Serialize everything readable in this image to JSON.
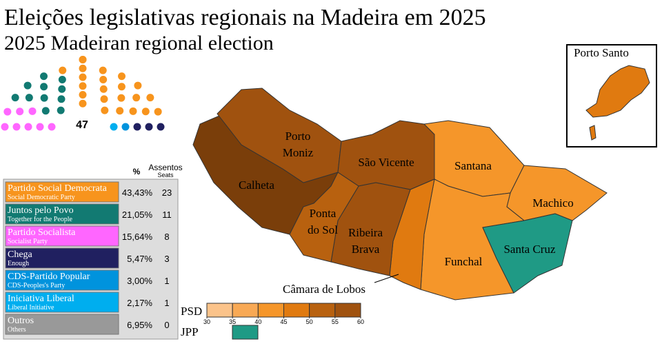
{
  "title": "Eleições legislativas regionais na Madeira em 2025",
  "subtitle": "2025 Madeiran regional election",
  "parliament": {
    "total": 47
  },
  "table": {
    "headers": {
      "percent": "%",
      "seats": "Assentos",
      "seats_en": "Seats"
    },
    "parties": [
      {
        "name": "Partido Social Democrata",
        "english": "Social Democratic Party",
        "percent": {
          "value": 43.43,
          "label": "43,43%"
        },
        "seats": 23,
        "color": "#f7941d"
      },
      {
        "name": "Juntos pelo Povo",
        "english": "Together for the People",
        "percent": {
          "value": 21.05,
          "label": "21,05%"
        },
        "seats": 11,
        "color": "#127a72"
      },
      {
        "name": "Partido Socialista",
        "english": "Socialist Party",
        "percent": {
          "value": 15.64,
          "label": "15,64%"
        },
        "seats": 8,
        "color": "#ff66ff"
      },
      {
        "name": "Chega",
        "english": "Enough",
        "percent": {
          "value": 5.47,
          "label": "5,47%"
        },
        "seats": 3,
        "color": "#202060"
      },
      {
        "name": "CDS-Partido Popular",
        "english": "CDS-Peoples's Party",
        "percent": {
          "value": 3.0,
          "label": "3,00%"
        },
        "seats": 1,
        "color": "#0093dd"
      },
      {
        "name": "Iniciativa Liberal",
        "english": "Liberal Initiative",
        "percent": {
          "value": 2.17,
          "label": "2,17%"
        },
        "seats": 1,
        "color": "#00aeef"
      },
      {
        "name": "Outros",
        "english": "Others",
        "percent": {
          "value": 6.95,
          "label": "6,95%"
        },
        "seats": 0,
        "color": "#999999"
      }
    ]
  },
  "map": {
    "regions": [
      {
        "label": [
          "Porto",
          "Moniz"
        ]
      },
      {
        "label": [
          "São Vicente"
        ]
      },
      {
        "label": [
          "Santana"
        ]
      },
      {
        "label": [
          "Calheta"
        ]
      },
      {
        "label": [
          "Ponta",
          "do Sol"
        ]
      },
      {
        "label": [
          "Ribeira",
          "Brava"
        ]
      },
      {
        "label": [
          "Machico"
        ]
      },
      {
        "label": [
          "Santa Cruz"
        ]
      },
      {
        "label": [
          "Funchal"
        ]
      },
      {
        "label": [
          "Câmara de Lobos"
        ]
      },
      {
        "label": [
          "Porto Santo"
        ]
      }
    ]
  },
  "legend": {
    "psd": "PSD",
    "jpp": "JPP",
    "ticks": [
      30,
      35,
      40,
      45,
      50,
      55,
      60
    ]
  }
}
